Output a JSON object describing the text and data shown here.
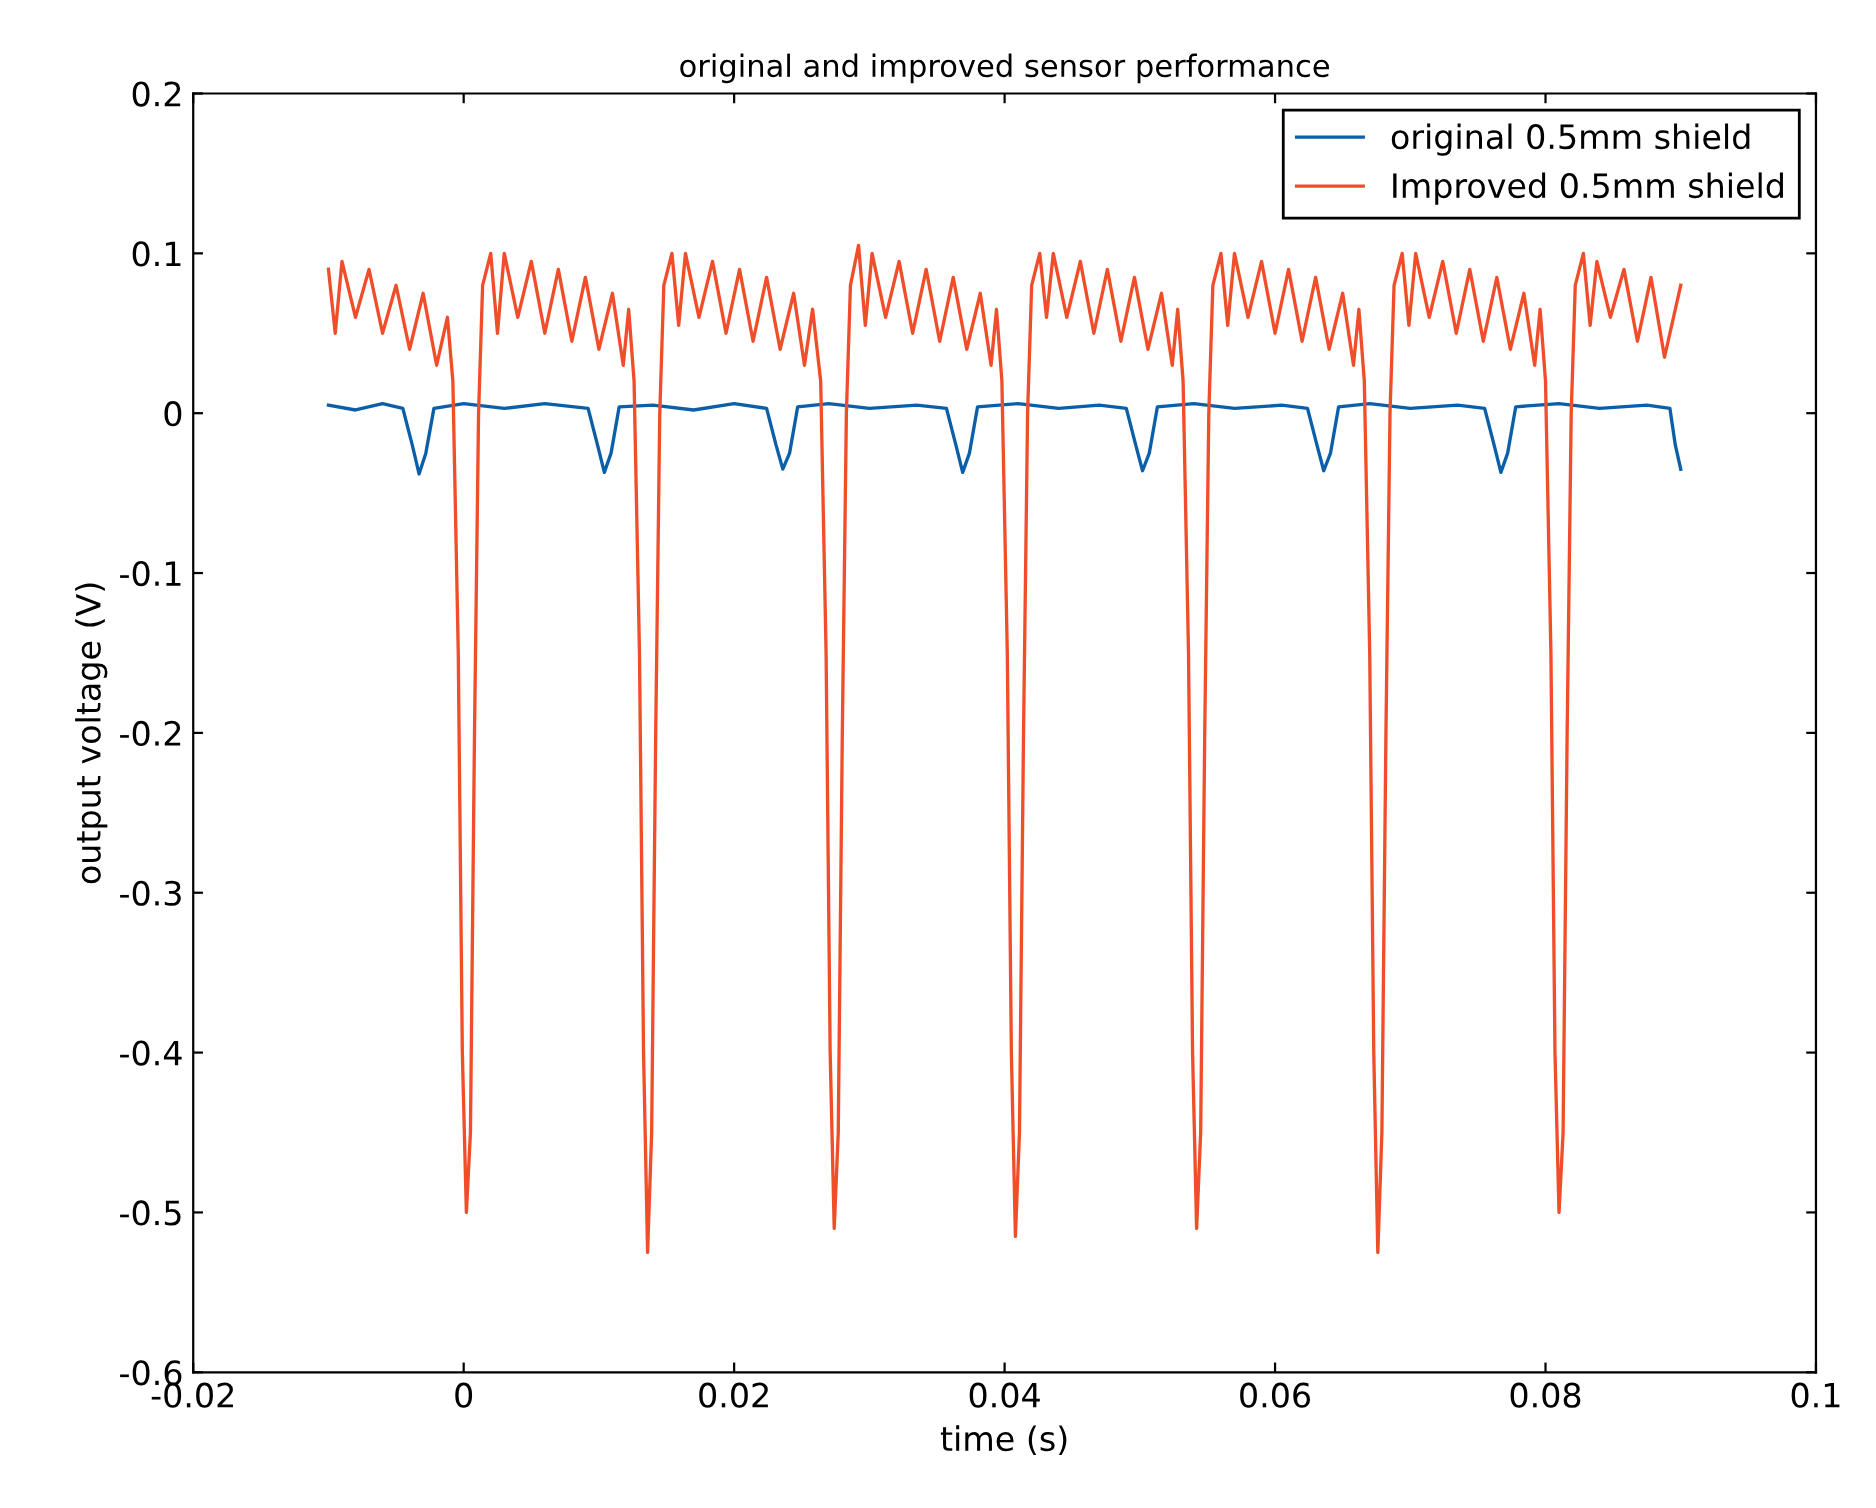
{
  "chart_data": {
    "type": "line",
    "title": "original and improved sensor performance",
    "xlabel": "time (s)",
    "ylabel": "output voltage (V)",
    "xlim": [
      -0.02,
      0.1
    ],
    "ylim": [
      -0.6,
      0.2
    ],
    "xticks": [
      -0.02,
      0,
      0.02,
      0.04,
      0.06,
      0.08,
      0.1
    ],
    "yticks": [
      -0.6,
      -0.5,
      -0.4,
      -0.3,
      -0.2,
      -0.1,
      0,
      0.1,
      0.2
    ],
    "grid": false,
    "legend": "top right",
    "line_style": "solid",
    "series": [
      {
        "name": "original 0.5mm shield",
        "color": "#0a5fa8",
        "x": [
          -0.01,
          -0.008,
          -0.006,
          -0.0045,
          -0.0038,
          -0.0033,
          -0.0028,
          -0.0022,
          0.0,
          0.003,
          0.006,
          0.0092,
          0.0099,
          0.0104,
          0.0109,
          0.0115,
          0.014,
          0.017,
          0.02,
          0.0224,
          0.0231,
          0.0236,
          0.0241,
          0.0247,
          0.027,
          0.03,
          0.0335,
          0.0357,
          0.0364,
          0.0369,
          0.0374,
          0.038,
          0.041,
          0.044,
          0.047,
          0.049,
          0.0497,
          0.0502,
          0.0507,
          0.0513,
          0.054,
          0.057,
          0.0605,
          0.0624,
          0.0631,
          0.0636,
          0.0641,
          0.0647,
          0.067,
          0.07,
          0.0735,
          0.0755,
          0.0762,
          0.0767,
          0.0772,
          0.0778,
          0.081,
          0.084,
          0.0875,
          0.0892,
          0.0896,
          0.09
        ],
        "values": [
          0.005,
          0.002,
          0.006,
          0.003,
          -0.02,
          -0.038,
          -0.025,
          0.003,
          0.006,
          0.003,
          0.006,
          0.003,
          -0.02,
          -0.037,
          -0.025,
          0.004,
          0.005,
          0.002,
          0.006,
          0.003,
          -0.02,
          -0.035,
          -0.025,
          0.004,
          0.006,
          0.003,
          0.005,
          0.003,
          -0.02,
          -0.037,
          -0.025,
          0.004,
          0.006,
          0.003,
          0.005,
          0.003,
          -0.02,
          -0.036,
          -0.025,
          0.004,
          0.006,
          0.003,
          0.005,
          0.003,
          -0.02,
          -0.036,
          -0.025,
          0.004,
          0.006,
          0.003,
          0.005,
          0.003,
          -0.02,
          -0.037,
          -0.025,
          0.004,
          0.006,
          0.003,
          0.005,
          0.003,
          -0.02,
          -0.035
        ]
      },
      {
        "name": "Improved 0.5mm shield",
        "color": "#f04e2a",
        "x": [
          -0.01,
          -0.0095,
          -0.009,
          -0.008,
          -0.007,
          -0.006,
          -0.005,
          -0.004,
          -0.003,
          -0.002,
          -0.0012,
          -0.0008,
          -0.0004,
          -0.0001,
          0.0002,
          0.0005,
          0.0008,
          0.0011,
          0.0014,
          0.002,
          0.0025,
          0.003,
          0.004,
          0.005,
          0.006,
          0.007,
          0.008,
          0.009,
          0.01,
          0.011,
          0.0118,
          0.0122,
          0.0126,
          0.013,
          0.0133,
          0.0136,
          0.0139,
          0.0142,
          0.0145,
          0.0148,
          0.0154,
          0.0159,
          0.0164,
          0.0174,
          0.0184,
          0.0194,
          0.0204,
          0.0214,
          0.0224,
          0.0234,
          0.0244,
          0.0252,
          0.0258,
          0.0264,
          0.0268,
          0.0271,
          0.0274,
          0.0277,
          0.028,
          0.0283,
          0.0286,
          0.0292,
          0.0297,
          0.0302,
          0.0312,
          0.0322,
          0.0332,
          0.0342,
          0.0352,
          0.0362,
          0.0372,
          0.0382,
          0.039,
          0.0394,
          0.0398,
          0.0402,
          0.0405,
          0.0408,
          0.0411,
          0.0414,
          0.0417,
          0.042,
          0.0426,
          0.0431,
          0.0436,
          0.0446,
          0.0456,
          0.0466,
          0.0476,
          0.0486,
          0.0496,
          0.0506,
          0.0516,
          0.0524,
          0.0528,
          0.0532,
          0.0536,
          0.0539,
          0.0542,
          0.0545,
          0.0548,
          0.0551,
          0.0554,
          0.056,
          0.0565,
          0.057,
          0.058,
          0.059,
          0.06,
          0.061,
          0.062,
          0.063,
          0.064,
          0.065,
          0.0658,
          0.0662,
          0.0666,
          0.067,
          0.0673,
          0.0676,
          0.0679,
          0.0682,
          0.0685,
          0.0688,
          0.0694,
          0.0699,
          0.0704,
          0.0714,
          0.0724,
          0.0734,
          0.0744,
          0.0754,
          0.0764,
          0.0774,
          0.0784,
          0.0792,
          0.0796,
          0.08,
          0.0804,
          0.0807,
          0.081,
          0.0813,
          0.0816,
          0.0819,
          0.0822,
          0.0828,
          0.0833,
          0.0838,
          0.0848,
          0.0858,
          0.0868,
          0.0878,
          0.0888,
          0.09
        ],
        "values": [
          0.09,
          0.05,
          0.095,
          0.06,
          0.09,
          0.05,
          0.08,
          0.04,
          0.075,
          0.03,
          0.06,
          0.02,
          -0.15,
          -0.4,
          -0.5,
          -0.45,
          -0.2,
          0.0,
          0.08,
          0.1,
          0.05,
          0.1,
          0.06,
          0.095,
          0.05,
          0.09,
          0.045,
          0.085,
          0.04,
          0.075,
          0.03,
          0.065,
          0.02,
          -0.15,
          -0.4,
          -0.525,
          -0.45,
          -0.2,
          0.0,
          0.08,
          0.1,
          0.055,
          0.1,
          0.06,
          0.095,
          0.05,
          0.09,
          0.045,
          0.085,
          0.04,
          0.075,
          0.03,
          0.065,
          0.02,
          -0.15,
          -0.4,
          -0.51,
          -0.45,
          -0.2,
          0.0,
          0.08,
          0.105,
          0.055,
          0.1,
          0.06,
          0.095,
          0.05,
          0.09,
          0.045,
          0.085,
          0.04,
          0.075,
          0.03,
          0.065,
          0.02,
          -0.15,
          -0.4,
          -0.515,
          -0.45,
          -0.2,
          0.0,
          0.08,
          0.1,
          0.06,
          0.1,
          0.06,
          0.095,
          0.05,
          0.09,
          0.045,
          0.085,
          0.04,
          0.075,
          0.03,
          0.065,
          0.02,
          -0.15,
          -0.4,
          -0.51,
          -0.45,
          -0.2,
          0.0,
          0.08,
          0.1,
          0.055,
          0.1,
          0.06,
          0.095,
          0.05,
          0.09,
          0.045,
          0.085,
          0.04,
          0.075,
          0.03,
          0.065,
          0.02,
          -0.15,
          -0.4,
          -0.525,
          -0.45,
          -0.2,
          0.0,
          0.08,
          0.1,
          0.055,
          0.1,
          0.06,
          0.095,
          0.05,
          0.09,
          0.045,
          0.085,
          0.04,
          0.075,
          0.03,
          0.065,
          0.02,
          -0.15,
          -0.4,
          -0.5,
          -0.45,
          -0.2,
          0.0,
          0.08,
          0.1,
          0.055,
          0.095,
          0.06,
          0.09,
          0.045,
          0.085,
          0.035,
          0.08
        ]
      }
    ]
  }
}
